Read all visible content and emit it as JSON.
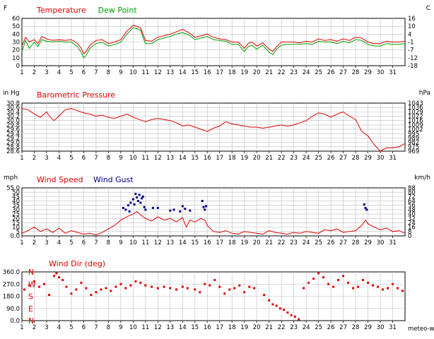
{
  "chart_data": [
    {
      "type": "line",
      "left_unit": "F",
      "right_unit": "C",
      "title_parts": [
        {
          "text": "Temperature",
          "color": "#e00000"
        },
        {
          "text": "Dew Point",
          "color": "#00a000"
        }
      ],
      "y_ticks": [
        "60",
        "50",
        "40",
        "30",
        "20",
        "10",
        "0"
      ],
      "y_right_ticks": [
        "16",
        "10",
        "4",
        "-1",
        "-7",
        "-12",
        "-18"
      ],
      "x_ticks": [
        "1",
        "2",
        "3",
        "4",
        "5",
        "6",
        "7",
        "8",
        "9",
        "10",
        "11",
        "12",
        "13",
        "14",
        "15",
        "16",
        "17",
        "18",
        "19",
        "20",
        "21",
        "22",
        "23",
        "24",
        "25",
        "26",
        "27",
        "28",
        "29",
        "30",
        "31"
      ],
      "xlim": [
        1,
        32
      ],
      "ylim": [
        0,
        60
      ],
      "grid": true,
      "series": [
        {
          "name": "Temperature",
          "color": "#e00000",
          "x": [
            1,
            1.3,
            1.6,
            2,
            2.3,
            2.6,
            3,
            3.5,
            4,
            4.5,
            5,
            5.5,
            5.8,
            6,
            6.2,
            6.5,
            7,
            7.5,
            8,
            8.5,
            9,
            9.5,
            10,
            10.3,
            10.6,
            10.8,
            11,
            11.5,
            12,
            12.5,
            13,
            13.5,
            14,
            14.5,
            15,
            15.5,
            16,
            16.5,
            17,
            17.5,
            18,
            18.5,
            19,
            19.3,
            19.6,
            20,
            20.5,
            21,
            21.3,
            21.6,
            22,
            22.5,
            23,
            23.5,
            24,
            24.5,
            25,
            25.5,
            26,
            26.5,
            27,
            27.5,
            28,
            28.5,
            29,
            29.5,
            30,
            30.5,
            31,
            31.5,
            32
          ],
          "y": [
            25,
            36,
            30,
            33,
            28,
            37,
            34,
            32,
            33,
            32,
            33,
            28,
            22,
            15,
            18,
            26,
            32,
            33,
            28,
            30,
            33,
            44,
            51,
            50,
            48,
            40,
            32,
            31,
            36,
            38,
            40,
            43,
            46,
            42,
            36,
            38,
            40,
            36,
            34,
            33,
            30,
            30,
            22,
            28,
            30,
            25,
            29,
            21,
            18,
            24,
            30,
            30,
            30,
            29,
            31,
            30,
            34,
            32,
            33,
            31,
            34,
            32,
            36,
            35,
            30,
            28,
            28,
            31,
            30,
            30,
            31
          ]
        },
        {
          "name": "Dew Point",
          "color": "#00a000",
          "x": [
            1,
            1.3,
            1.6,
            2,
            2.3,
            2.6,
            3,
            3.5,
            4,
            4.5,
            5,
            5.5,
            5.8,
            6,
            6.2,
            6.5,
            7,
            7.5,
            8,
            8.5,
            9,
            9.5,
            10,
            10.3,
            10.6,
            10.8,
            11,
            11.5,
            12,
            12.5,
            13,
            13.5,
            14,
            14.5,
            15,
            15.5,
            16,
            16.5,
            17,
            17.5,
            18,
            18.5,
            19,
            19.3,
            19.6,
            20,
            20.5,
            21,
            21.3,
            21.6,
            22,
            22.5,
            23,
            23.5,
            24,
            24.5,
            25,
            25.5,
            26,
            26.5,
            27,
            27.5,
            28,
            28.5,
            29,
            29.5,
            30,
            30.5,
            31,
            31.5,
            32
          ],
          "y": [
            18,
            32,
            22,
            30,
            24,
            33,
            31,
            30,
            31,
            30,
            30,
            24,
            17,
            10,
            13,
            22,
            28,
            30,
            25,
            27,
            30,
            40,
            48,
            47,
            45,
            36,
            28,
            28,
            33,
            35,
            37,
            40,
            42,
            39,
            33,
            35,
            37,
            33,
            32,
            31,
            27,
            27,
            18,
            24,
            26,
            21,
            26,
            17,
            14,
            21,
            26,
            27,
            27,
            27,
            28,
            27,
            31,
            30,
            30,
            28,
            31,
            29,
            33,
            32,
            27,
            25,
            25,
            28,
            27,
            27,
            28
          ]
        }
      ]
    },
    {
      "type": "line",
      "left_unit": "in Hg",
      "right_unit": "hPa",
      "title_parts": [
        {
          "text": "Barometric Pressure",
          "color": "#e00000"
        }
      ],
      "y_ticks": [
        "30.8",
        "30.6",
        "30.4",
        "30.2",
        "30.0",
        "29.8",
        "29.6",
        "29.4",
        "29.2",
        "29.0",
        "28.8",
        "28.6"
      ],
      "y_right_ticks": [
        "1043",
        "1036",
        "1029",
        "1022",
        "1016",
        "1009",
        "1002",
        "995",
        "989",
        "982",
        "975",
        "969"
      ],
      "x_ticks": [
        "1",
        "2",
        "3",
        "4",
        "5",
        "6",
        "7",
        "8",
        "9",
        "10",
        "11",
        "12",
        "13",
        "14",
        "15",
        "16",
        "17",
        "18",
        "19",
        "20",
        "21",
        "22",
        "23",
        "24",
        "25",
        "26",
        "27",
        "28",
        "29",
        "30",
        "31"
      ],
      "xlim": [
        1,
        32
      ],
      "ylim": [
        28.6,
        30.8
      ],
      "grid": true,
      "series": [
        {
          "name": "Barometric Pressure",
          "color": "#e00000",
          "x": [
            1,
            1.5,
            2,
            2.5,
            3,
            3.3,
            3.6,
            4,
            4.5,
            5,
            5.5,
            6,
            6.5,
            7,
            7.5,
            8,
            8.5,
            9,
            9.5,
            10,
            10.5,
            11,
            11.5,
            12,
            12.5,
            13,
            13.5,
            14,
            14.5,
            15,
            15.5,
            16,
            16.5,
            17,
            17.5,
            18,
            18.5,
            19,
            19.5,
            20,
            20.5,
            21,
            21.5,
            22,
            22.5,
            23,
            23.5,
            24,
            24.5,
            25,
            25.5,
            26,
            26.5,
            27,
            27.5,
            28,
            28.5,
            29,
            29.5,
            30,
            30.5,
            31,
            31.5,
            32
          ],
          "y": [
            30.55,
            30.5,
            30.3,
            30.15,
            30.4,
            30.15,
            30.0,
            30.2,
            30.5,
            30.55,
            30.45,
            30.35,
            30.3,
            30.2,
            30.25,
            30.15,
            30.1,
            30.2,
            30.3,
            30.15,
            30.05,
            29.95,
            30.05,
            30.1,
            30.05,
            30.0,
            29.9,
            29.75,
            29.8,
            29.7,
            29.6,
            29.5,
            29.65,
            29.75,
            29.95,
            29.85,
            29.8,
            29.75,
            29.7,
            29.7,
            29.65,
            29.7,
            29.75,
            29.8,
            29.75,
            29.8,
            29.9,
            30.0,
            30.2,
            30.35,
            30.3,
            30.15,
            30.3,
            30.4,
            30.2,
            30.05,
            29.5,
            29.3,
            28.9,
            28.6,
            28.75,
            28.75,
            28.8,
            28.95
          ]
        }
      ]
    },
    {
      "type": "line",
      "left_unit": "mph",
      "right_unit": "km/h",
      "title_parts": [
        {
          "text": "Wind Speed",
          "color": "#e00000"
        },
        {
          "text": "Wind Gust",
          "color": "#000080"
        }
      ],
      "y_ticks": [
        "55.0",
        "50",
        "45",
        "40",
        "35",
        "30",
        "25",
        "20",
        "15",
        "10",
        "5",
        "0.0"
      ],
      "y_right_ticks": [
        "88",
        "80",
        "72",
        "64",
        "56",
        "48",
        "40",
        "32",
        "24",
        "16",
        "8",
        "0"
      ],
      "x_ticks": [
        "1",
        "2",
        "3",
        "4",
        "5",
        "6",
        "7",
        "8",
        "9",
        "10",
        "11",
        "12",
        "13",
        "14",
        "15",
        "16",
        "17",
        "18",
        "19",
        "20",
        "21",
        "22",
        "23",
        "24",
        "25",
        "26",
        "27",
        "28",
        "29",
        "30",
        "31"
      ],
      "xlim": [
        1,
        32
      ],
      "ylim": [
        0,
        55
      ],
      "grid": true,
      "series": [
        {
          "name": "Wind Speed",
          "color": "#e00000",
          "x": [
            1,
            1.5,
            2,
            2.5,
            3,
            3.5,
            4,
            4.5,
            5,
            5.5,
            6,
            6.5,
            7,
            7.5,
            8,
            8.5,
            9,
            9.5,
            10,
            10.3,
            10.6,
            11,
            11.5,
            12,
            12.5,
            13,
            13.5,
            14,
            14.3,
            14.6,
            15,
            15.5,
            15.8,
            16,
            16.5,
            17,
            17.5,
            18,
            18.5,
            19,
            19.5,
            20,
            20.5,
            21,
            21.5,
            22,
            22.5,
            23,
            23.5,
            24,
            24.5,
            25,
            25.5,
            26,
            26.5,
            27,
            27.5,
            28,
            28.5,
            28.8,
            29,
            29.5,
            30,
            30.5,
            31,
            31.5,
            32
          ],
          "y": [
            3,
            6,
            10,
            5,
            8,
            4,
            9,
            3,
            6,
            4,
            2,
            3,
            1,
            4,
            8,
            12,
            18,
            22,
            25,
            28,
            24,
            20,
            17,
            22,
            18,
            20,
            16,
            21,
            10,
            18,
            16,
            20,
            18,
            12,
            5,
            4,
            6,
            3,
            2,
            5,
            4,
            3,
            2,
            6,
            4,
            3,
            2,
            4,
            3,
            5,
            4,
            3,
            7,
            6,
            8,
            4,
            5,
            6,
            12,
            18,
            14,
            10,
            7,
            9,
            5,
            6,
            3
          ]
        },
        {
          "name": "Wind Gust",
          "color": "#000080",
          "type": "scatter",
          "x": [
            9.2,
            9.4,
            9.6,
            9.8,
            10.0,
            10.1,
            10.3,
            10.4,
            10.6,
            10.7,
            10.9,
            11.0,
            9.7,
            10.2,
            10.5,
            10.8,
            11.6,
            12.0,
            13.0,
            13.3,
            13.8,
            14.0,
            14.2,
            14.6,
            15.6,
            15.7,
            15.8,
            15.9,
            28.7,
            28.8,
            28.9
          ],
          "y": [
            32,
            30,
            35,
            38,
            42,
            36,
            44,
            40,
            38,
            43,
            33,
            30,
            28,
            48,
            47,
            45,
            32,
            32,
            29,
            30,
            28,
            34,
            31,
            29,
            40,
            33,
            30,
            34,
            36,
            32,
            30
          ]
        }
      ]
    },
    {
      "type": "scatter",
      "title_parts": [
        {
          "text": "Wind Dir (deg)",
          "color": "#e00000"
        }
      ],
      "footer_label": "meteo-wind",
      "y_ticks": [
        "360.0",
        "270.0",
        "180.0",
        "90.0",
        "0.0"
      ],
      "compass": [
        "N",
        "W",
        "S",
        "E",
        "N"
      ],
      "x_ticks": [
        "1",
        "2",
        "3",
        "4",
        "5",
        "6",
        "7",
        "8",
        "9",
        "10",
        "11",
        "12",
        "13",
        "14",
        "15",
        "16",
        "17",
        "18",
        "19",
        "20",
        "21",
        "22",
        "23",
        "24",
        "25",
        "26",
        "27",
        "28",
        "29",
        "30",
        "31"
      ],
      "xlim": [
        1,
        32
      ],
      "ylim": [
        0,
        360
      ],
      "grid": true,
      "series": [
        {
          "name": "Wind Dir",
          "color": "#e00000",
          "x": [
            1.2,
            1.6,
            2.0,
            2.4,
            2.8,
            3.2,
            3.6,
            3.8,
            4.0,
            4.3,
            4.6,
            5.0,
            5.4,
            5.8,
            6.2,
            6.6,
            7.0,
            7.4,
            7.8,
            8.2,
            8.6,
            9.0,
            9.4,
            9.8,
            10.2,
            10.6,
            11.0,
            11.5,
            12.0,
            12.5,
            13.0,
            13.5,
            14.0,
            14.4,
            15.0,
            15.4,
            15.8,
            16.2,
            16.6,
            17.0,
            17.4,
            17.8,
            18.2,
            18.6,
            19.0,
            19.4,
            19.8,
            20.6,
            21.0,
            21.3,
            21.6,
            21.9,
            22.2,
            22.5,
            22.8,
            23.1,
            23.4,
            23.8,
            24.2,
            24.6,
            25.0,
            25.4,
            25.8,
            26.2,
            26.6,
            27.0,
            27.4,
            27.8,
            28.2,
            28.6,
            29.0,
            29.4,
            29.8,
            30.2,
            30.6,
            31.0,
            31.4,
            31.8
          ],
          "y": [
            230,
            260,
            290,
            250,
            270,
            190,
            330,
            350,
            320,
            300,
            250,
            200,
            230,
            280,
            240,
            190,
            210,
            230,
            240,
            220,
            250,
            270,
            240,
            260,
            290,
            280,
            260,
            250,
            240,
            250,
            240,
            230,
            250,
            240,
            230,
            210,
            270,
            260,
            300,
            250,
            200,
            230,
            240,
            260,
            210,
            250,
            240,
            190,
            150,
            120,
            110,
            90,
            80,
            60,
            40,
            30,
            10,
            240,
            280,
            310,
            350,
            320,
            270,
            250,
            300,
            330,
            280,
            240,
            250,
            300,
            280,
            260,
            250,
            230,
            240,
            270,
            240,
            220
          ]
        }
      ]
    }
  ]
}
